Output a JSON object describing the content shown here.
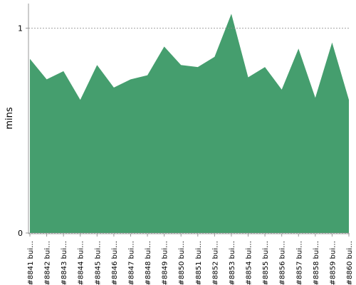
{
  "chart_data": {
    "type": "area",
    "y_label": "mins",
    "categories": [
      "#8841 bui…",
      "#8842 bui…",
      "#8843 bui…",
      "#8844 bui…",
      "#8845 bui…",
      "#8846 bui…",
      "#8847 bui…",
      "#8848 bui…",
      "#8849 bui…",
      "#8850 bui…",
      "#8851 bui…",
      "#8852 bui…",
      "#8853 bui…",
      "#8854 bui…",
      "#8855 bui…",
      "#8856 bui…",
      "#8857 bui…",
      "#8858 bui…",
      "#8859 bui…",
      "#8860 bui…"
    ],
    "values": [
      0.85,
      0.75,
      0.79,
      0.65,
      0.82,
      0.71,
      0.75,
      0.77,
      0.91,
      0.82,
      0.81,
      0.86,
      1.07,
      0.76,
      0.81,
      0.7,
      0.9,
      0.66,
      0.93,
      0.65
    ],
    "color": "#459e6e",
    "ylim": [
      0,
      1.12
    ],
    "yticks": [
      0,
      1
    ],
    "grid": true
  }
}
